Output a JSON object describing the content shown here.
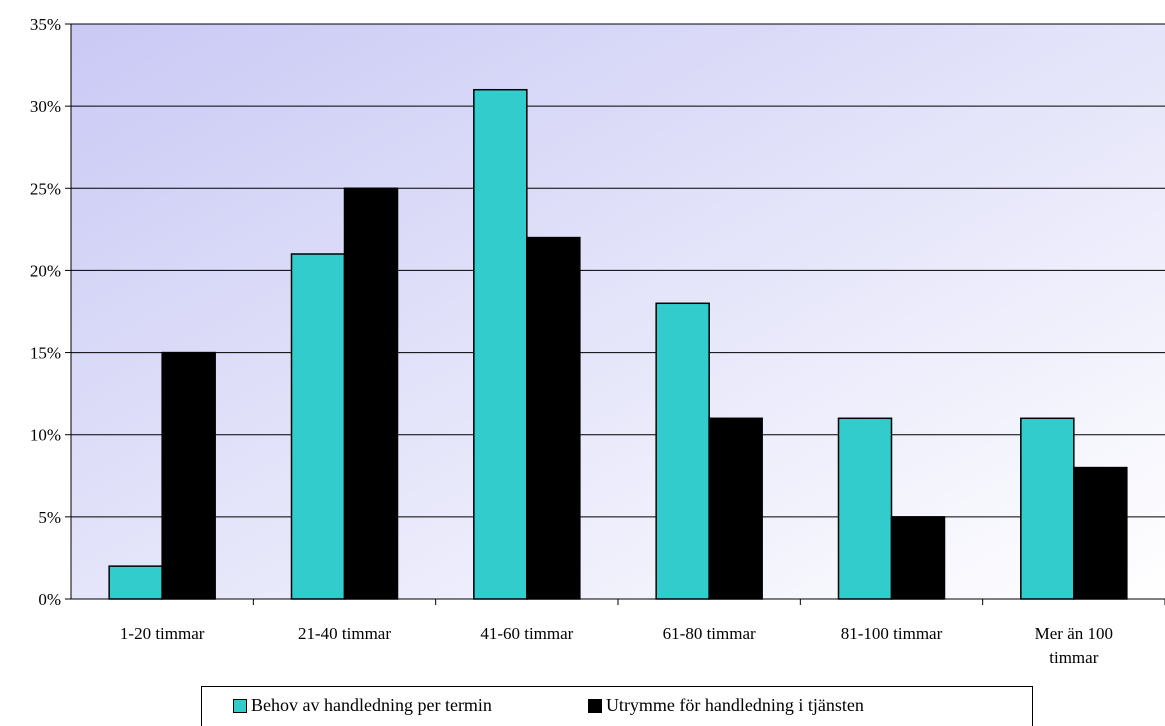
{
  "chart_data": {
    "type": "bar",
    "categories": [
      "1-20 timmar",
      "21-40 timmar",
      "41-60 timmar",
      "61-80 timmar",
      "81-100 timmar",
      "Mer än 100 timmar"
    ],
    "category_lines": [
      [
        "1-20 timmar"
      ],
      [
        "21-40 timmar"
      ],
      [
        "41-60 timmar"
      ],
      [
        "61-80 timmar"
      ],
      [
        "81-100 timmar"
      ],
      [
        "Mer än 100",
        "timmar"
      ]
    ],
    "series": [
      {
        "name": "Behov av handledning per termin",
        "values": [
          2,
          21,
          31,
          18,
          11,
          11
        ],
        "color": "#33cccc"
      },
      {
        "name": "Utrymme för handledning i tjänsten",
        "values": [
          15,
          25,
          22,
          11,
          5,
          8
        ],
        "color": "#000000"
      }
    ],
    "ylim": [
      0,
      35
    ],
    "yticks": [
      "0%",
      "5%",
      "10%",
      "15%",
      "20%",
      "25%",
      "30%",
      "35%"
    ],
    "grid": true,
    "legend_position": "bottom",
    "plot_background": [
      "#c9c9f5",
      "#ffffff"
    ],
    "unit": "%"
  }
}
